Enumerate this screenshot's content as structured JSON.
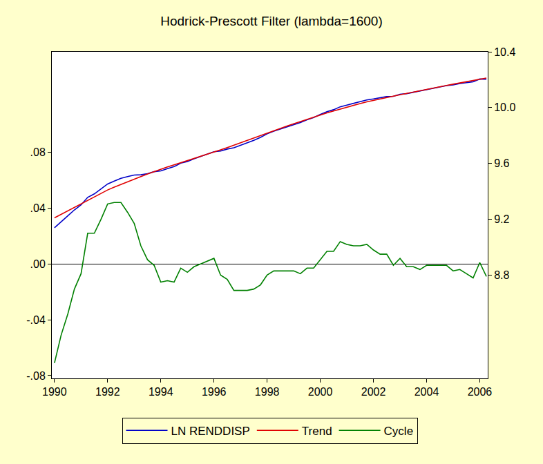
{
  "chart_data": {
    "type": "line",
    "title": "Hodrick-Prescott Filter (lambda=1600)",
    "x": [
      1990,
      1990.25,
      1990.5,
      1990.75,
      1991,
      1991.25,
      1991.5,
      1991.75,
      1992,
      1992.25,
      1992.5,
      1992.75,
      1993,
      1993.25,
      1993.5,
      1993.75,
      1994,
      1994.25,
      1994.5,
      1994.75,
      1995,
      1995.25,
      1995.5,
      1995.75,
      1996,
      1996.25,
      1996.5,
      1996.75,
      1997,
      1997.25,
      1997.5,
      1997.75,
      1998,
      1998.25,
      1998.5,
      1998.75,
      1999,
      1999.25,
      1999.5,
      1999.75,
      2000,
      2000.25,
      2000.5,
      2000.75,
      2001,
      2001.25,
      2001.5,
      2001.75,
      2002,
      2002.25,
      2002.5,
      2002.75,
      2003,
      2003.25,
      2003.5,
      2003.75,
      2004,
      2004.25,
      2004.5,
      2004.75,
      2005,
      2005.25,
      2005.5,
      2005.75,
      2006,
      2006.25
    ],
    "series": [
      {
        "name": "LN RENDDISP",
        "color": "#0000C8",
        "axis": "y2",
        "values": [
          9.139,
          9.184,
          9.224,
          9.267,
          9.303,
          9.357,
          9.382,
          9.417,
          9.453,
          9.474,
          9.494,
          9.506,
          9.517,
          9.519,
          9.527,
          9.541,
          9.547,
          9.563,
          9.577,
          9.602,
          9.614,
          9.633,
          9.65,
          9.667,
          9.684,
          9.689,
          9.703,
          9.712,
          9.729,
          9.747,
          9.766,
          9.787,
          9.812,
          9.831,
          9.847,
          9.863,
          9.879,
          9.893,
          9.913,
          9.929,
          9.951,
          9.971,
          9.985,
          10.006,
          10.018,
          10.03,
          10.042,
          10.055,
          10.062,
          10.069,
          10.079,
          10.081,
          10.096,
          10.1,
          10.11,
          10.118,
          10.131,
          10.14,
          10.149,
          10.158,
          10.163,
          10.173,
          10.179,
          10.185,
          10.205,
          10.203
        ]
      },
      {
        "name": "Trend",
        "color": "#E00000",
        "axis": "y2",
        "values": [
          9.21,
          9.235,
          9.26,
          9.285,
          9.31,
          9.335,
          9.36,
          9.385,
          9.41,
          9.43,
          9.45,
          9.469,
          9.488,
          9.506,
          9.524,
          9.542,
          9.56,
          9.575,
          9.59,
          9.605,
          9.62,
          9.635,
          9.65,
          9.665,
          9.68,
          9.697,
          9.714,
          9.731,
          9.748,
          9.766,
          9.784,
          9.802,
          9.82,
          9.836,
          9.852,
          9.868,
          9.884,
          9.9,
          9.916,
          9.932,
          9.948,
          9.962,
          9.976,
          9.99,
          10.004,
          10.017,
          10.029,
          10.041,
          10.052,
          10.062,
          10.072,
          10.082,
          10.092,
          10.102,
          10.112,
          10.122,
          10.132,
          10.141,
          10.15,
          10.159,
          10.168,
          10.177,
          10.186,
          10.195,
          10.204,
          10.212
        ]
      },
      {
        "name": "Cycle",
        "color": "#008000",
        "values": [
          -0.071,
          -0.051,
          -0.036,
          -0.018,
          -0.007,
          0.022,
          0.022,
          0.032,
          0.043,
          0.044,
          0.044,
          0.037,
          0.029,
          0.013,
          0.003,
          -0.001,
          -0.013,
          -0.012,
          -0.013,
          -0.003,
          -0.006,
          -0.002,
          0.0,
          0.002,
          0.004,
          -0.008,
          -0.011,
          -0.019,
          -0.019,
          -0.019,
          -0.018,
          -0.015,
          -0.008,
          -0.005,
          -0.005,
          -0.005,
          -0.005,
          -0.007,
          -0.003,
          -0.003,
          0.003,
          0.009,
          0.009,
          0.016,
          0.014,
          0.013,
          0.013,
          0.014,
          0.01,
          0.007,
          0.007,
          -0.001,
          0.004,
          -0.002,
          -0.002,
          -0.004,
          -0.001,
          -0.001,
          -0.001,
          -0.001,
          -0.005,
          -0.004,
          -0.007,
          -0.01,
          0.001,
          -0.009
        ]
      }
    ],
    "xlim": [
      1989.9,
      2006.3
    ],
    "xticks": [
      1990,
      1992,
      1994,
      1996,
      1998,
      2000,
      2002,
      2004,
      2006
    ],
    "ylim": [
      -0.082,
      0.152
    ],
    "yticks": [
      {
        "value": -0.08,
        "label": "-.08"
      },
      {
        "value": -0.04,
        "label": "-.04"
      },
      {
        "value": 0,
        "label": ".00"
      },
      {
        "value": 0.04,
        "label": ".04"
      },
      {
        "value": 0.08,
        "label": ".08"
      }
    ],
    "y2lim": [
      8.06,
      10.4
    ],
    "y2ticks": [
      8.8,
      9.2,
      9.6,
      {
        "value": 10,
        "label": "10.0"
      },
      10.4
    ],
    "grid": false,
    "legend": "bottom"
  }
}
